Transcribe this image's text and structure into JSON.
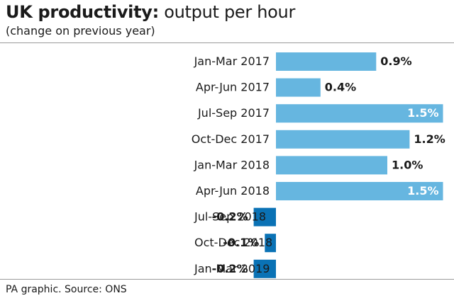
{
  "header": {
    "title_bold": "UK productivity:",
    "title_rest": " output per hour",
    "subtitle": "(change on previous year)"
  },
  "footer": {
    "source": "PA graphic. Source: ONS"
  },
  "colors": {
    "positive": "#66b6e0",
    "negative": "#0a72b5",
    "label_inside": "#ffffff",
    "label_outside": "#1a1a1a"
  },
  "chart_data": {
    "type": "bar",
    "orientation": "horizontal",
    "title": "UK productivity: output per hour",
    "subtitle": "(change on previous year)",
    "unit": "%",
    "categories": [
      "Jan-Mar 2017",
      "Apr-Jun 2017",
      "Jul-Sep 2017",
      "Oct-Dec 2017",
      "Jan-Mar 2018",
      "Apr-Jun 2018",
      "Jul-Sep 2018",
      "Oct-Dec 2018",
      "Jan-Mar 2019"
    ],
    "values": [
      0.9,
      0.4,
      1.5,
      1.2,
      1.0,
      1.5,
      -0.2,
      -0.1,
      -0.2
    ],
    "data_labels": [
      "0.9%",
      "0.4%",
      "1.5%",
      "1.2%",
      "1.0%",
      "1.5%",
      "-0.2%",
      "-0.1%",
      "-0.2%"
    ],
    "xlim": [
      -0.2,
      1.5
    ],
    "grid": false,
    "legend": "none"
  }
}
